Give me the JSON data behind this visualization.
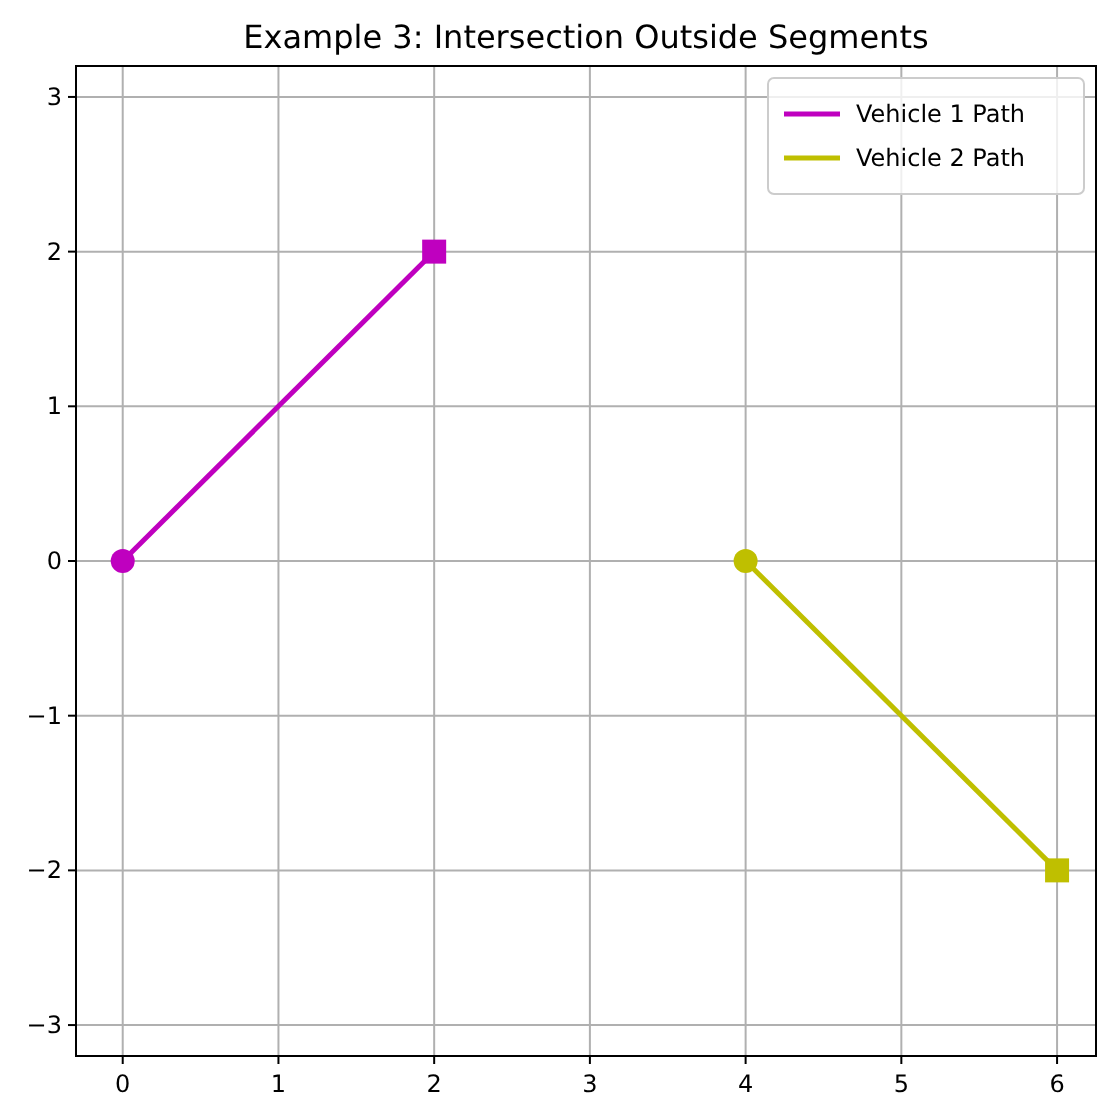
{
  "chart_data": {
    "type": "line",
    "title": "Example 3: Intersection Outside Segments",
    "xlim": [
      -0.3,
      6.25
    ],
    "ylim": [
      -3.2,
      3.2
    ],
    "xticks": [
      0,
      1,
      2,
      3,
      4,
      5,
      6
    ],
    "yticks": [
      -3,
      -2,
      -1,
      0,
      1,
      2,
      3
    ],
    "grid": true,
    "legend": "top right",
    "series": [
      {
        "name": "Vehicle 1 Path",
        "color": "#bf00bf",
        "x": [
          0,
          2
        ],
        "values": [
          0,
          2
        ],
        "marker": "none"
      },
      {
        "name": "Vehicle 2 Path",
        "color": "#bfbf00",
        "x": [
          4,
          6
        ],
        "values": [
          0,
          -2
        ],
        "marker": "none"
      },
      {
        "type": "scatter",
        "color": "#bf00bf",
        "x": [
          0
        ],
        "values": [
          0
        ],
        "marker": "circle"
      },
      {
        "type": "scatter",
        "color": "#bf00bf",
        "x": [
          2
        ],
        "values": [
          2
        ],
        "marker": "square"
      },
      {
        "type": "scatter",
        "color": "#bfbf00",
        "x": [
          4
        ],
        "values": [
          0
        ],
        "marker": "circle"
      },
      {
        "type": "scatter",
        "color": "#bfbf00",
        "x": [
          6
        ],
        "values": [
          -2
        ],
        "marker": "square"
      }
    ]
  }
}
